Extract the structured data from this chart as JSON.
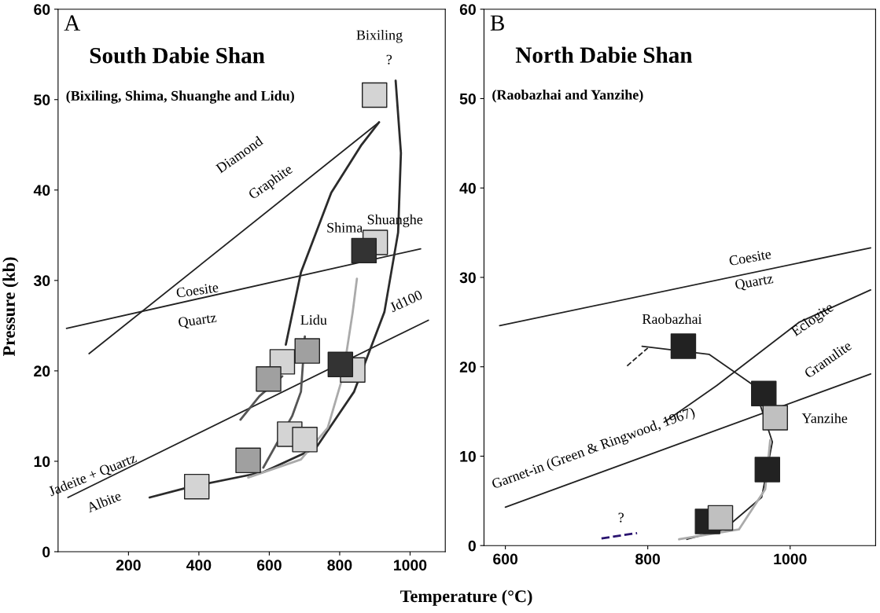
{
  "chart_data": [
    {
      "type": "line",
      "title": "South Dabie Shan",
      "subtitle": "(Bixiling, Shima, Shuanghe and Lidu)",
      "ylabel": "Pressure (kb)",
      "xlabel": "Temperature (°C)",
      "xlim": [
        0,
        1100
      ],
      "ylim": [
        0,
        60
      ],
      "xticks": [
        200,
        400,
        600,
        800,
        1000
      ],
      "yticks": [
        0,
        10,
        20,
        30,
        40,
        50,
        60
      ],
      "grid": false,
      "series": [
        {
          "color": "#222222",
          "x": [
            88,
            912
          ],
          "values": [
            21.9,
            47.5
          ]
        },
        {
          "color": "#222222",
          "x": [
            24,
            1030
          ],
          "values": [
            24.7,
            33.5
          ]
        },
        {
          "color": "#222222",
          "x": [
            28,
            1052
          ],
          "values": [
            6.0,
            25.6
          ]
        },
        {
          "color": "#2b2b2b",
          "x": [
            647,
            690,
            776,
            862,
            912
          ],
          "values": [
            22.9,
            30.9,
            39.7,
            45.0,
            47.5
          ]
        },
        {
          "color": "#2b2b2b",
          "x": [
            959,
            974,
            966,
            927,
            841,
            733,
            583,
            368,
            260
          ],
          "values": [
            52.1,
            44.1,
            35.3,
            26.5,
            17.7,
            11.5,
            8.8,
            7.1,
            6.0
          ]
        },
        {
          "color": "#aaaaaa",
          "x": [
            849,
            837,
            809,
            766,
            690,
            540
          ],
          "values": [
            30.2,
            26.5,
            19.4,
            13.7,
            10.2,
            8.2
          ]
        },
        {
          "color": "#555555",
          "x": [
            518,
            572,
            637
          ],
          "values": [
            14.6,
            17.2,
            19.4
          ]
        },
        {
          "color": "#555555",
          "x": [
            701,
            690,
            665,
            583
          ],
          "values": [
            23.8,
            17.7,
            15.0,
            9.3
          ]
        },
        {
          "type": "scatter",
          "marker": "square",
          "color": "#d4d4d4",
          "x": [
            899,
            901,
            637,
            837,
            658,
            701,
            394
          ],
          "values": [
            50.5,
            34.2,
            21.0,
            20.1,
            13.0,
            12.4,
            7.2
          ]
        },
        {
          "type": "scatter",
          "marker": "square",
          "color": "#333333",
          "x": [
            869,
            802
          ],
          "values": [
            33.3,
            20.7
          ]
        },
        {
          "type": "scatter",
          "marker": "square",
          "color": "#a0a0a0",
          "x": [
            708,
            598,
            540
          ],
          "values": [
            22.2,
            19.1,
            10.1
          ]
        }
      ],
      "annotations": [
        "A",
        "Bixiling",
        "?",
        "Diamond",
        "Graphite",
        "Coesite",
        "Quartz",
        "Shima",
        "Shuanghe",
        "Lidu",
        "Jd100",
        "Jadeite + Quartz",
        "Albite"
      ]
    },
    {
      "type": "line",
      "title": "North Dabie Shan",
      "subtitle": "(Raobazhai and Yanzihe)",
      "xlim": [
        570,
        1120
      ],
      "ylim": [
        0,
        60
      ],
      "xticks": [
        600,
        800,
        1000
      ],
      "yticks": [
        0,
        10,
        20,
        30,
        40,
        50,
        60
      ],
      "grid": false,
      "series": [
        {
          "color": "#222222",
          "x": [
            592,
            1113
          ],
          "values": [
            24.6,
            33.3
          ]
        },
        {
          "color": "#222222",
          "x": [
            823,
            897,
            1013,
            1113
          ],
          "values": [
            13.8,
            17.9,
            25.0,
            28.6
          ]
        },
        {
          "color": "#222222",
          "x": [
            600,
            1113
          ],
          "values": [
            4.3,
            19.2
          ]
        },
        {
          "color": "#222222",
          "x": [
            792,
            886,
            949,
            975,
            960,
            907,
            855
          ],
          "values": [
            22.3,
            21.4,
            17.9,
            11.6,
            5.4,
            1.8,
            0.7
          ]
        },
        {
          "color": "#aaaaaa",
          "x": [
            972,
            965,
            928,
            844
          ],
          "values": [
            11.8,
            6.3,
            1.8,
            0.7
          ]
        },
        {
          "color": "#222222",
          "line_style": "dashed",
          "x": [
            771,
            800
          ],
          "values": [
            20.1,
            22.1
          ]
        },
        {
          "color": "#2a1470",
          "line_style": "dashed",
          "x": [
            735,
            785
          ],
          "values": [
            0.8,
            1.4
          ]
        },
        {
          "type": "scatter",
          "marker": "square",
          "color": "#222222",
          "x": [
            850,
            963,
            968,
            884
          ],
          "values": [
            22.3,
            17.0,
            8.5,
            2.7
          ]
        },
        {
          "type": "scatter",
          "marker": "square",
          "color": "#c0c0c0",
          "x": [
            979,
            902
          ],
          "values": [
            14.3,
            3.1
          ]
        }
      ],
      "annotations": [
        "B",
        "Coesite",
        "Quartz",
        "Raobazhai",
        "Eclogite",
        "Granulite",
        "Yanzihe",
        "Garnet-in (Green & Ringwood, 1967)",
        "?"
      ]
    }
  ]
}
